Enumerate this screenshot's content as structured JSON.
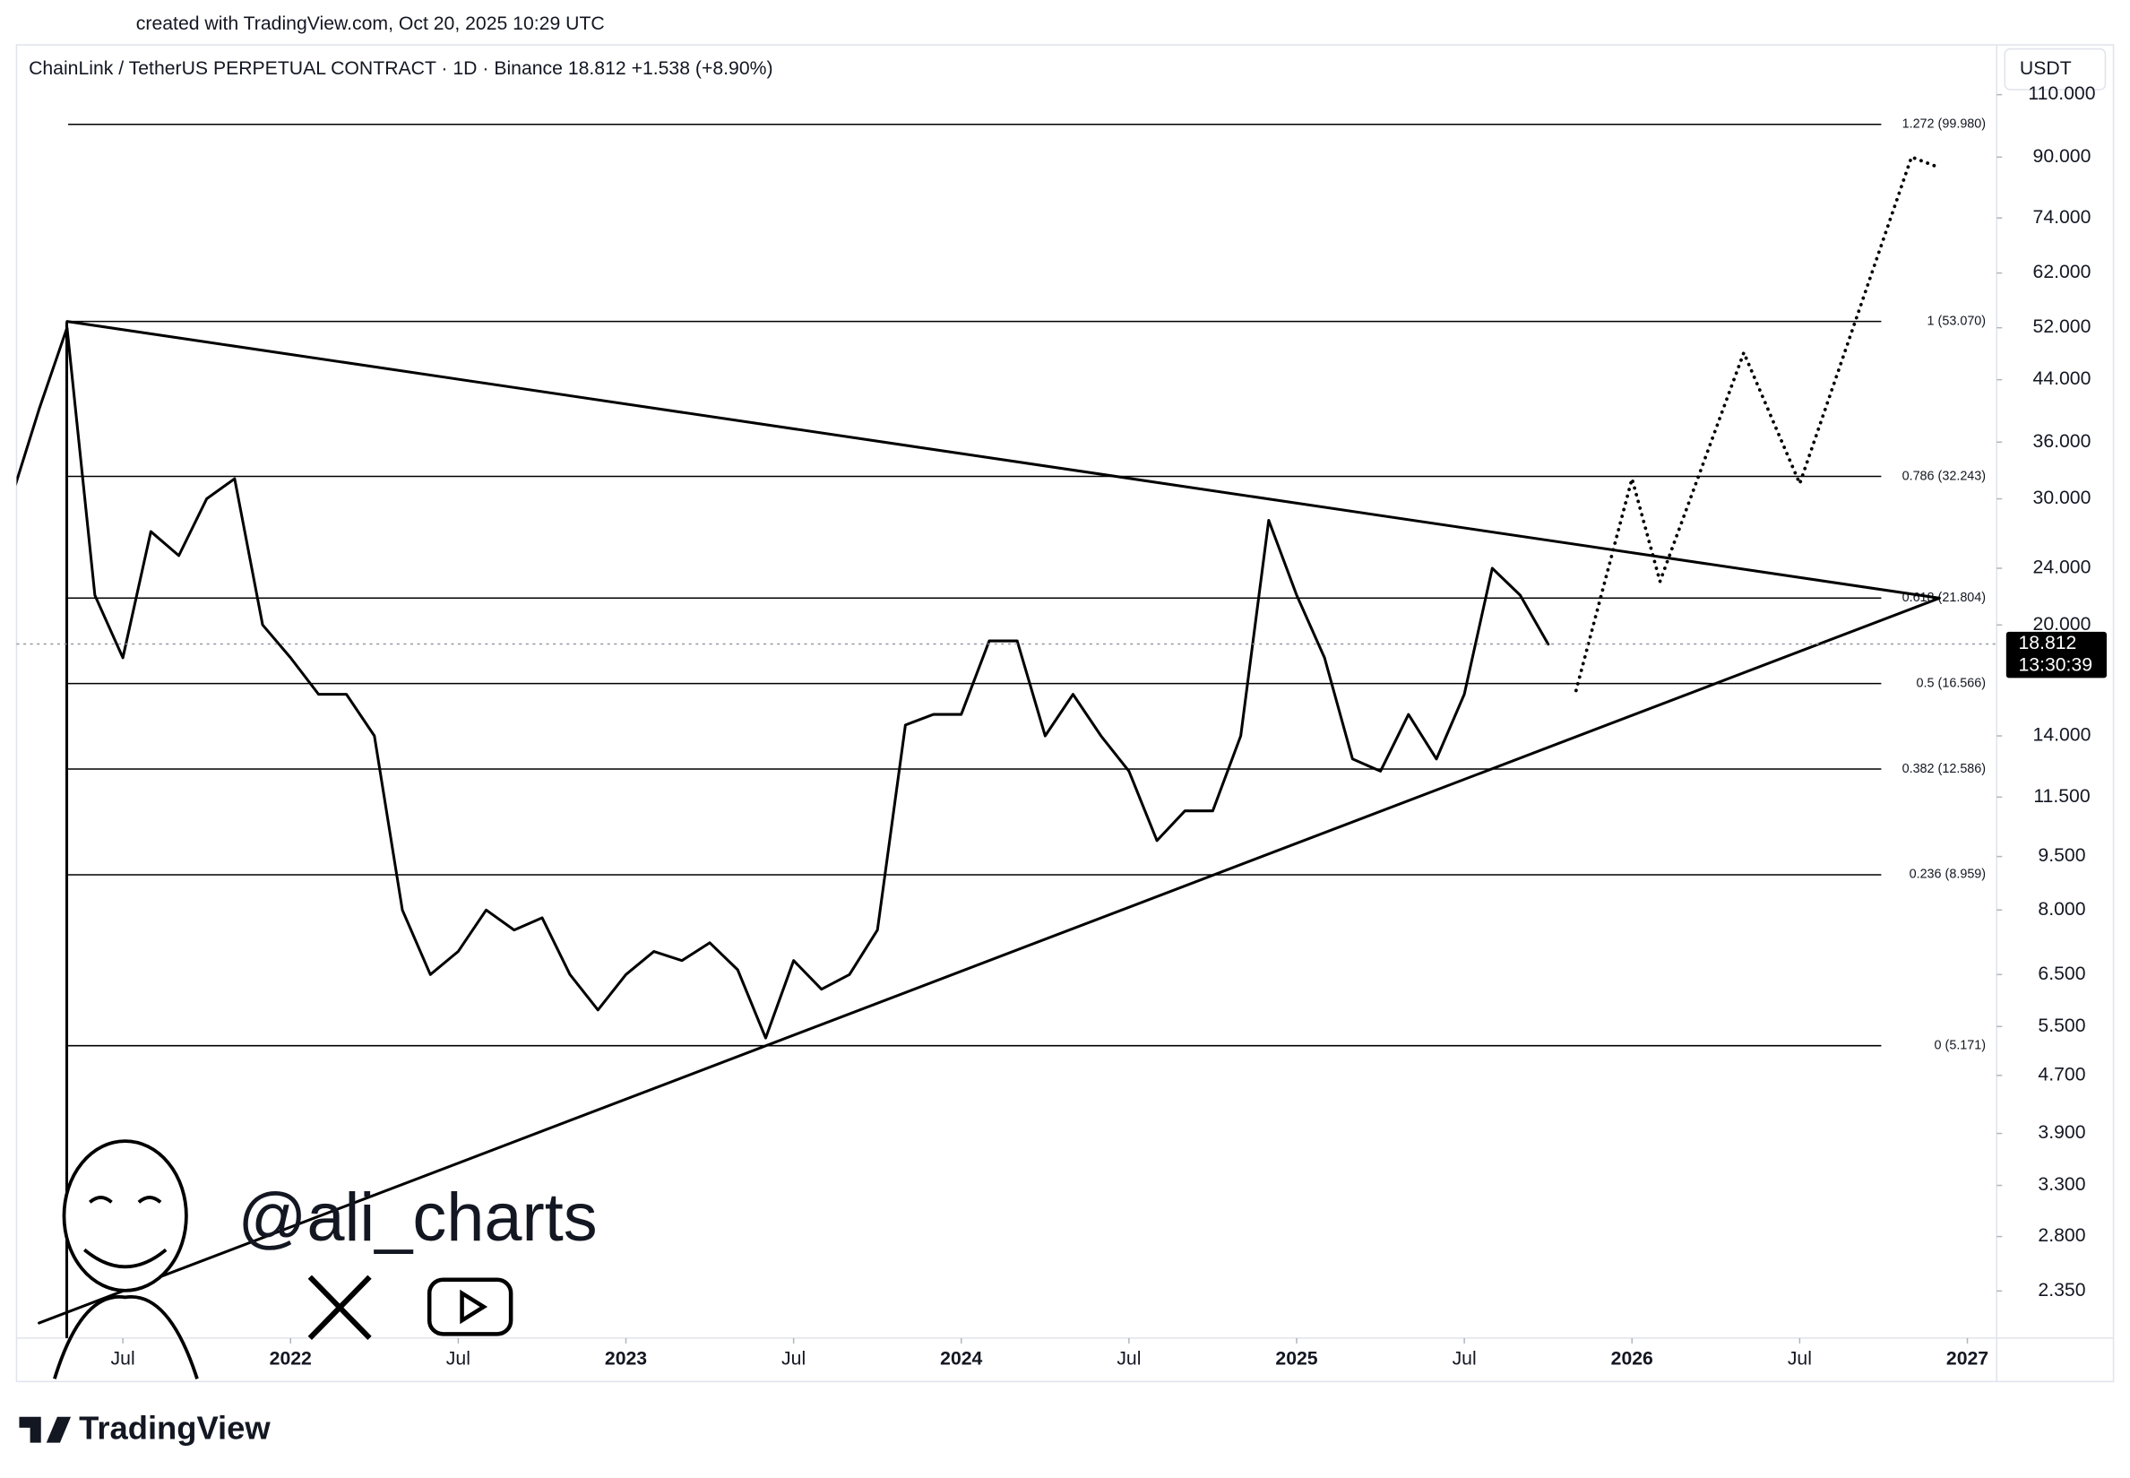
{
  "chart_data": {
    "type": "line",
    "created": "created with TradingView.com, Oct 20, 2025 10:29 UTC",
    "title": "ChainLink / TetherUS PERPETUAL CONTRACT · 1D · Binance  18.812  +1.538 (+8.90%)",
    "currency": "USDT",
    "log_scale": true,
    "grid": false,
    "xlim": [
      "2021-03",
      "2027-02"
    ],
    "ylim": [
      2.02,
      128
    ],
    "xticks": [
      {
        "value": "2021-07",
        "label": "Jul"
      },
      {
        "value": "2022-01",
        "label": "2022"
      },
      {
        "value": "2022-07",
        "label": "Jul"
      },
      {
        "value": "2023-01",
        "label": "2023"
      },
      {
        "value": "2023-07",
        "label": "Jul"
      },
      {
        "value": "2024-01",
        "label": "2024"
      },
      {
        "value": "2024-07",
        "label": "Jul"
      },
      {
        "value": "2025-01",
        "label": "2025"
      },
      {
        "value": "2025-07",
        "label": "Jul"
      },
      {
        "value": "2026-01",
        "label": "2026"
      },
      {
        "value": "2026-07",
        "label": "Jul"
      },
      {
        "value": "2027-01",
        "label": "2027"
      }
    ],
    "yticks": [
      {
        "value": 2.35,
        "label": "2.350"
      },
      {
        "value": 2.8,
        "label": "2.800"
      },
      {
        "value": 3.3,
        "label": "3.300"
      },
      {
        "value": 3.9,
        "label": "3.900"
      },
      {
        "value": 4.7,
        "label": "4.700"
      },
      {
        "value": 5.5,
        "label": "5.500"
      },
      {
        "value": 6.5,
        "label": "6.500"
      },
      {
        "value": 8,
        "label": "8.000"
      },
      {
        "value": 9.5,
        "label": "9.500"
      },
      {
        "value": 11.5,
        "label": "11.500"
      },
      {
        "value": 14,
        "label": "14.000"
      },
      {
        "value": 20,
        "label": "20.000"
      },
      {
        "value": 24,
        "label": "24.000"
      },
      {
        "value": 30,
        "label": "30.000"
      },
      {
        "value": 36,
        "label": "36.000"
      },
      {
        "value": 44,
        "label": "44.000"
      },
      {
        "value": 52,
        "label": "52.000"
      },
      {
        "value": 62,
        "label": "62.000"
      },
      {
        "value": 74,
        "label": "74.000"
      },
      {
        "value": 90,
        "label": "90.000"
      },
      {
        "value": 110,
        "label": "110.000"
      }
    ],
    "fib_levels": [
      {
        "value": 99.98,
        "label": "1.272 (99.980)"
      },
      {
        "value": 53.07,
        "label": "1 (53.070)"
      },
      {
        "value": 32.243,
        "label": "0.786 (32.243)"
      },
      {
        "value": 21.804,
        "label": "0.618 (21.804)"
      },
      {
        "value": 16.566,
        "label": "0.5 (16.566)"
      },
      {
        "value": 12.586,
        "label": "0.382 (12.586)"
      },
      {
        "value": 8.959,
        "label": "0.236 (8.959)"
      },
      {
        "value": 5.171,
        "label": "0 (5.171)"
      }
    ],
    "last_price": {
      "value": 18.812,
      "countdown": "13:30:39"
    },
    "series": [
      {
        "color": "#000000",
        "dash": "solid",
        "x": [
          "2021-03",
          "2021-04",
          "2021-05",
          "2021-06",
          "2021-07",
          "2021-08",
          "2021-09",
          "2021-10",
          "2021-11",
          "2021-12",
          "2022-01",
          "2022-02",
          "2022-03",
          "2022-04",
          "2022-05",
          "2022-06",
          "2022-07",
          "2022-08",
          "2022-09",
          "2022-10",
          "2022-11",
          "2022-12",
          "2023-01",
          "2023-02",
          "2023-03",
          "2023-04",
          "2023-05",
          "2023-06",
          "2023-07",
          "2023-08",
          "2023-09",
          "2023-10",
          "2023-11",
          "2023-12",
          "2024-01",
          "2024-02",
          "2024-03",
          "2024-04",
          "2024-05",
          "2024-06",
          "2024-07",
          "2024-08",
          "2024-09",
          "2024-10",
          "2024-11",
          "2024-12",
          "2025-01",
          "2025-02",
          "2025-03",
          "2025-04",
          "2025-05",
          "2025-06",
          "2025-07",
          "2025-08",
          "2025-09",
          "2025-10"
        ],
        "values": [
          30,
          40,
          52,
          22,
          18,
          27,
          25,
          30,
          32,
          20,
          18,
          16,
          16,
          14,
          8,
          6.5,
          7,
          8,
          7.5,
          7.8,
          6.5,
          5.8,
          6.5,
          7,
          6.8,
          7.2,
          6.6,
          5.3,
          6.8,
          6.2,
          6.5,
          7.5,
          14.5,
          15,
          15,
          19,
          19,
          14,
          16,
          14,
          12.5,
          10,
          11,
          11,
          14,
          28,
          22,
          18,
          13,
          12.5,
          15,
          13,
          16,
          24,
          22,
          18.8
        ]
      },
      {
        "color": "#000000",
        "dash": "dotted",
        "x": [
          "2025-11",
          "2026-01",
          "2026-02",
          "2026-05",
          "2026-07",
          "2026-11",
          "2026-12"
        ],
        "values": [
          16.2,
          32,
          23,
          48,
          31.5,
          90,
          87
        ]
      },
      {
        "color": "#000000",
        "dash": "solid",
        "x": [
          "2021-05",
          "2026-12"
        ],
        "values": [
          53.07,
          21.8
        ]
      },
      {
        "color": "#000000",
        "dash": "solid",
        "x": [
          "2021-04",
          "2026-12"
        ],
        "values": [
          2.12,
          21.8
        ]
      }
    ],
    "watermark": "@ali_charts",
    "brand": "TradingView"
  }
}
